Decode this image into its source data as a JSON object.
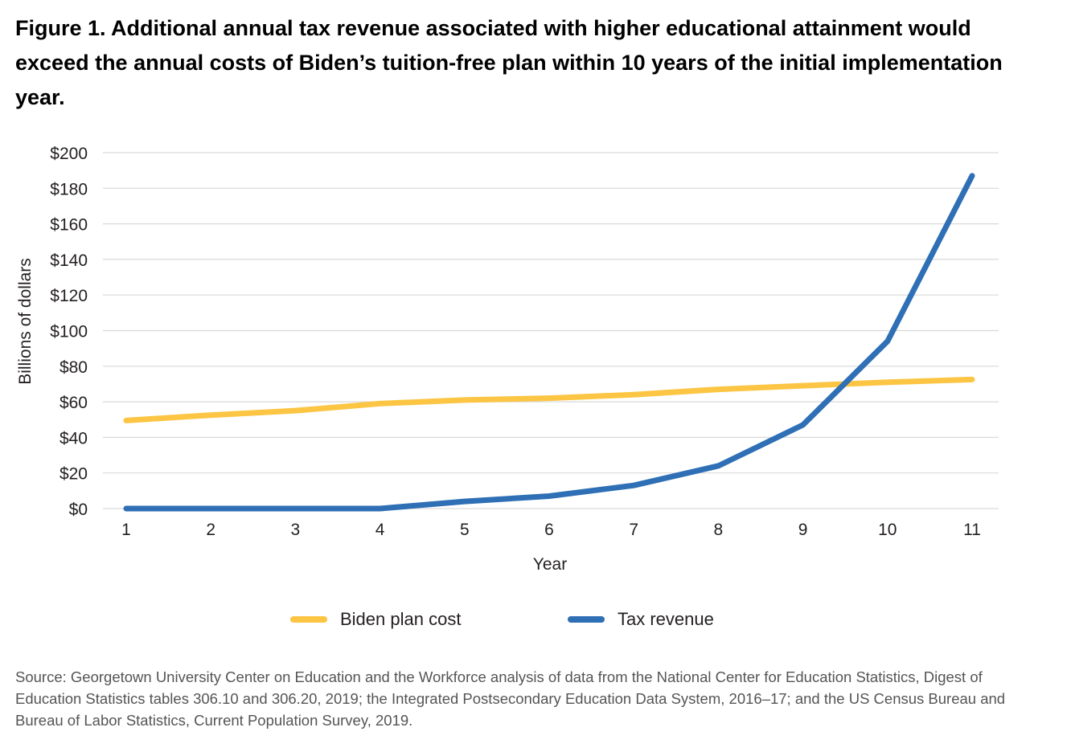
{
  "title": "Figure 1. Additional annual tax revenue associated with higher educational attainment would exceed the annual costs of Biden’s tuition-free plan within 10 years of the initial implementation year.",
  "source": "Source: Georgetown University Center on Education and the Workforce analysis of data from the National Center for Education Statistics, Digest of Education Statistics tables 306.10 and 306.20, 2019; the Integrated Postsecondary Education Data System, 2016–17; and the US Census Bureau and Bureau of Labor Statistics, Current Population Survey, 2019.",
  "chart_data": {
    "type": "line",
    "x": [
      1,
      2,
      3,
      4,
      5,
      6,
      7,
      8,
      9,
      10,
      11
    ],
    "xlabel": "Year",
    "ylabel": "Billions of dollars",
    "ylim": [
      0,
      200
    ],
    "yticks": [
      0,
      20,
      40,
      60,
      80,
      100,
      120,
      140,
      160,
      180,
      200
    ],
    "ytick_labels": [
      "$0",
      "$20",
      "$40",
      "$60",
      "$80",
      "$100",
      "$120",
      "$140",
      "$160",
      "$180",
      "$200"
    ],
    "grid": true,
    "legend_position": "bottom",
    "series": [
      {
        "name": "Biden plan cost",
        "color": "#fcc543",
        "values": [
          49.5,
          52.5,
          55,
          59,
          61,
          62,
          64,
          67,
          69,
          71,
          72.5
        ]
      },
      {
        "name": "Tax revenue",
        "color": "#2e6fb5",
        "values": [
          0,
          0,
          0,
          0,
          4,
          7,
          13,
          24,
          47,
          94,
          187
        ]
      }
    ]
  }
}
